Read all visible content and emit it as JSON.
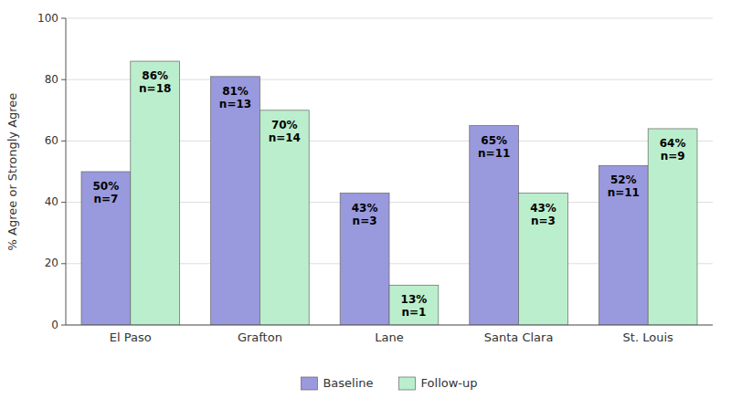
{
  "chart_data": {
    "type": "bar",
    "ylabel": "% Agree or Strongly Agree",
    "categories": [
      "El Paso",
      "Grafton",
      "Lane",
      "Santa Clara",
      "St. Louis"
    ],
    "series": [
      {
        "name": "Baseline",
        "color": "#9999DD",
        "values": [
          50,
          81,
          43,
          65,
          52
        ],
        "value_labels": [
          "50%\nn=7",
          "81%\nn=13",
          "43%\nn=3",
          "65%\nn=11",
          "52%\nn=11"
        ]
      },
      {
        "name": "Follow-up",
        "color": "#BBEECC",
        "values": [
          86,
          70,
          13,
          43,
          64
        ],
        "value_labels": [
          "86%\nn=18",
          "70%\nn=14",
          "13%\nn=1",
          "43%\nn=3",
          "64%\nn=9"
        ]
      }
    ],
    "ylim": [
      0,
      100
    ],
    "yticks": [
      0,
      20,
      40,
      60,
      80,
      100
    ],
    "grid": true,
    "legend": "bottom",
    "data_labels": true
  }
}
